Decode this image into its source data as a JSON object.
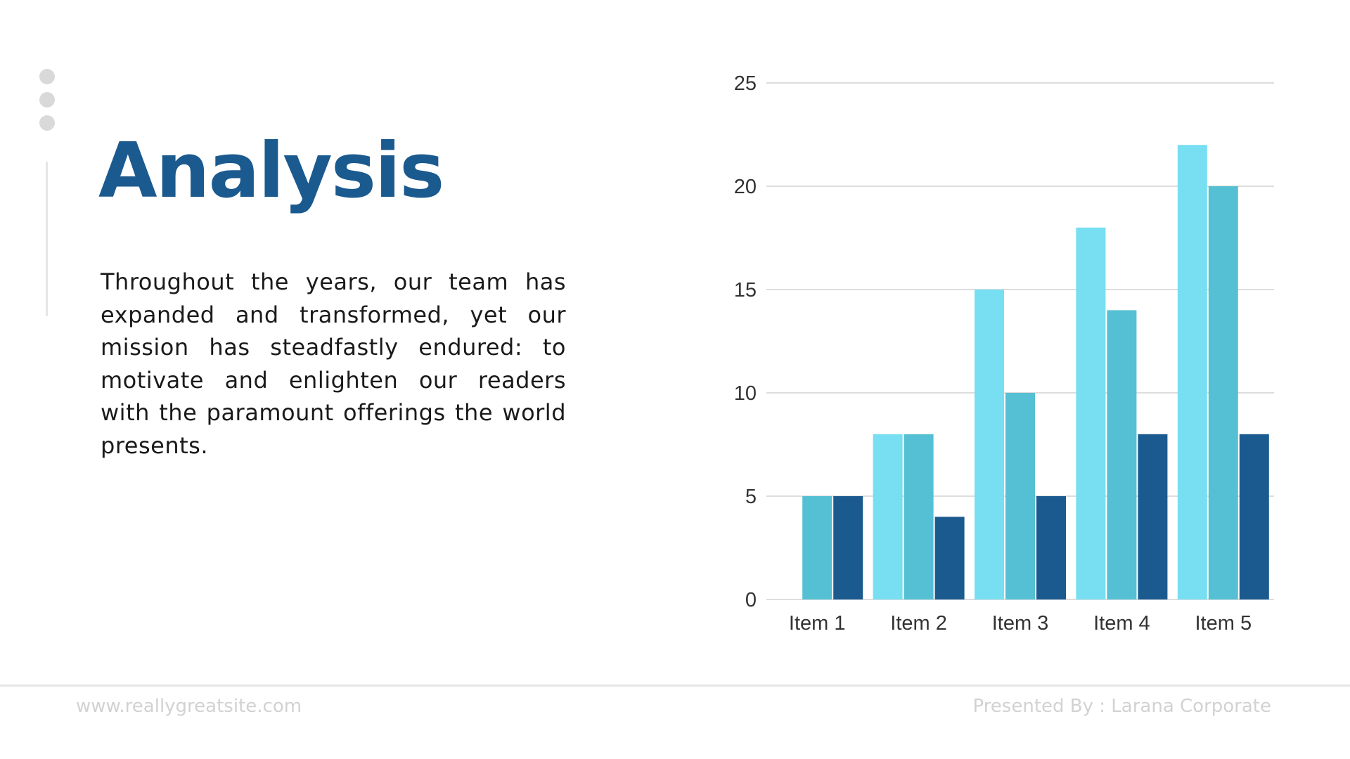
{
  "slide": {
    "title": "Analysis",
    "body": "Throughout the years, our team has expanded and transformed, yet our mission has steadfastly endured: to motivate and enlighten our readers with the paramount offerings the world presents.",
    "footer_left": "www.reallygreatsite.com",
    "footer_right": "Presented By : Larana Corporate"
  },
  "colors": {
    "title": "#1b5a8f",
    "series": [
      "#77dff1",
      "#55c0d3",
      "#1b5a8f"
    ],
    "grid": "#dddddd",
    "decor": "#d9d9d9"
  },
  "chart_data": {
    "type": "bar",
    "categories": [
      "Item 1",
      "Item 2",
      "Item 3",
      "Item 4",
      "Item 5"
    ],
    "series": [
      {
        "values": [
          0,
          8,
          15,
          18,
          22
        ]
      },
      {
        "values": [
          5,
          8,
          10,
          14,
          20
        ]
      },
      {
        "values": [
          5,
          4,
          5,
          8,
          8
        ]
      }
    ],
    "yticks": [
      0,
      5,
      10,
      15,
      20,
      25
    ],
    "ylim": [
      0,
      25
    ],
    "grid": true,
    "legend": "none",
    "title": "",
    "xlabel": "",
    "ylabel": ""
  }
}
